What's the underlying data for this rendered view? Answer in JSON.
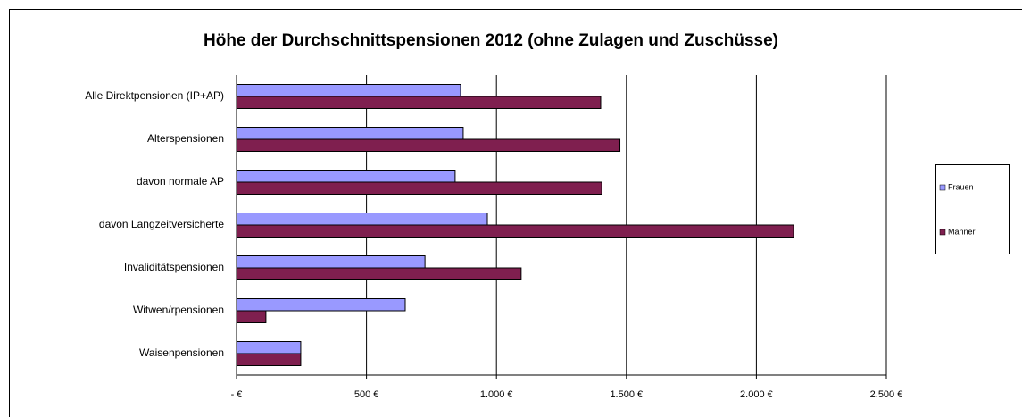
{
  "chart_data": {
    "type": "hbar",
    "title": "Höhe der Durchschnittspensionen 2012 (ohne Zulagen und Zuschüsse)",
    "categories": [
      "Alle Direktpensionen (IP+AP)",
      "Alterspensionen",
      "davon normale AP",
      "davon Langzeitversicherte",
      "Invaliditätspensionen",
      "Witwen/rpensionen",
      "Waisenpensionen"
    ],
    "series": [
      {
        "name": "Frauen",
        "color": "#9999ff",
        "values": [
          862,
          872,
          841,
          965,
          725,
          649,
          247
        ]
      },
      {
        "name": "Männer",
        "color": "#7f1f4f",
        "values": [
          1401,
          1475,
          1405,
          2143,
          1095,
          113,
          247
        ]
      }
    ],
    "xlim": [
      0,
      2500
    ],
    "xticks": [
      {
        "value": 0,
        "label": "-   €"
      },
      {
        "value": 500,
        "label": "500 €"
      },
      {
        "value": 1000,
        "label": "1.000 €"
      },
      {
        "value": 1500,
        "label": "1.500 €"
      },
      {
        "value": 2000,
        "label": "2.000 €"
      },
      {
        "value": 2500,
        "label": "2.500 €"
      }
    ],
    "grid": true,
    "legend": "right"
  }
}
